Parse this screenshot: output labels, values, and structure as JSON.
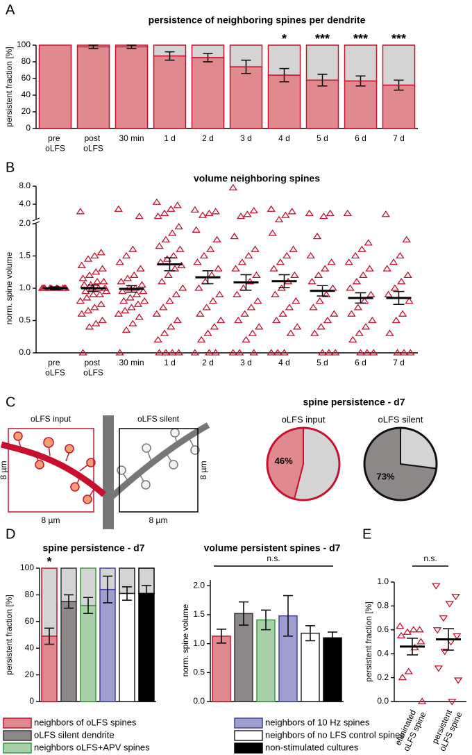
{
  "chart_data": [
    {
      "type": "stacked_bar",
      "panel": "A",
      "title": "persistence of neighboring spines per dendrite",
      "ylabel": "persistent fraction [%]",
      "categories": [
        "pre oLFS",
        "post oLFS",
        "30 min",
        "1 d",
        "2 d",
        "3 d",
        "4 d",
        "5 d",
        "6 d",
        "7 d"
      ],
      "series": [
        {
          "color": "#e08a8f",
          "edge": "#c8102e",
          "values": [
            100,
            98,
            98,
            87,
            85,
            74,
            64,
            58,
            57,
            52
          ],
          "errors": [
            0,
            2,
            2,
            5,
            5,
            8,
            8,
            7,
            6,
            6
          ]
        },
        {
          "color": "#d4d4d4",
          "values": [
            0,
            2,
            2,
            13,
            15,
            26,
            36,
            42,
            43,
            48
          ]
        }
      ],
      "significance": [
        null,
        null,
        null,
        null,
        null,
        null,
        "*",
        "***",
        "***",
        "***"
      ],
      "ylim": [
        0,
        100
      ],
      "yticks": [
        0,
        20,
        40,
        60,
        80,
        100
      ]
    },
    {
      "type": "strip",
      "panel": "B",
      "title": "volume neighboring spines",
      "ylabel": "norm. spine volume",
      "categories": [
        "pre oLFS",
        "post oLFS",
        "30 min",
        "1 d",
        "2 d",
        "3 d",
        "4 d",
        "5 d",
        "6 d",
        "7 d"
      ],
      "marker": "triangle-up",
      "color": "#c8102e",
      "points": [
        [
          1.0,
          1.0,
          1.0,
          1.0,
          1.0,
          1.0,
          1.0,
          1.0,
          1.0,
          1.0
        ],
        [
          3.0,
          1.55,
          1.5,
          1.45,
          1.35,
          1.3,
          1.25,
          1.2,
          1.15,
          1.1,
          1.1,
          1.05,
          1.05,
          1.0,
          1.0,
          1.0,
          0.95,
          0.95,
          0.9,
          0.9,
          0.85,
          0.8,
          0.75,
          0.7,
          0.65,
          0.6,
          0.5,
          0.45,
          0.4,
          0.0
        ],
        [
          3.3,
          2.5,
          1.6,
          1.5,
          1.4,
          1.3,
          1.2,
          1.15,
          1.1,
          1.05,
          1.0,
          1.0,
          0.95,
          0.95,
          0.9,
          0.85,
          0.8,
          0.8,
          0.75,
          0.7,
          0.65,
          0.6,
          0.55,
          0.45,
          0.35,
          0.0
        ],
        [
          4.3,
          3.8,
          3.3,
          2.8,
          2.5,
          1.95,
          1.85,
          1.75,
          1.65,
          1.6,
          1.5,
          1.45,
          1.4,
          1.35,
          1.3,
          1.2,
          1.1,
          1.0,
          0.9,
          0.8,
          0.7,
          0.6,
          0.5,
          0.4,
          0.3,
          0.2,
          0.0,
          0.0,
          0.0,
          0.0
        ],
        [
          3.2,
          3.0,
          2.8,
          2.6,
          1.9,
          1.75,
          1.6,
          1.5,
          1.4,
          1.3,
          1.2,
          1.1,
          1.0,
          0.9,
          0.8,
          0.7,
          0.6,
          0.5,
          0.4,
          0.3,
          0.2,
          0.0,
          0.0,
          0.0
        ],
        [
          7.5,
          3.1,
          2.7,
          2.5,
          1.8,
          1.6,
          1.5,
          1.4,
          1.3,
          1.2,
          1.1,
          1.0,
          0.9,
          0.8,
          0.7,
          0.6,
          0.5,
          0.4,
          0.3,
          0.2,
          0.0,
          0.0,
          0.0
        ],
        [
          3.3,
          3.0,
          2.6,
          2.2,
          1.85,
          1.6,
          1.5,
          1.4,
          1.3,
          1.2,
          1.1,
          1.0,
          0.9,
          0.8,
          0.7,
          0.6,
          0.5,
          0.4,
          0.3,
          0.0,
          0.0,
          0.0
        ],
        [
          2.8,
          2.8,
          2.5,
          1.8,
          1.5,
          1.4,
          1.3,
          1.2,
          1.1,
          1.0,
          0.9,
          0.8,
          0.7,
          0.6,
          0.5,
          0.4,
          0.3,
          0.0,
          0.0,
          0.0
        ],
        [
          2.8,
          1.7,
          1.6,
          1.5,
          1.4,
          1.3,
          1.2,
          1.1,
          1.0,
          0.9,
          0.8,
          0.7,
          0.6,
          0.5,
          0.4,
          0.3,
          0.2,
          0.0,
          0.0,
          0.0
        ],
        [
          2.7,
          1.75,
          1.5,
          1.4,
          1.3,
          1.2,
          1.1,
          1.0,
          0.9,
          0.8,
          0.6,
          0.5,
          0.3,
          0.0,
          0.0,
          0.0
        ]
      ],
      "means": [
        1.0,
        1.0,
        0.99,
        1.37,
        1.17,
        1.09,
        1.11,
        0.96,
        0.85,
        0.85
      ],
      "errors": [
        0.02,
        0.05,
        0.05,
        0.1,
        0.1,
        0.12,
        0.1,
        0.08,
        0.08,
        0.1
      ],
      "ylim": [
        0,
        2
      ],
      "yticks": [
        {
          "value": 0,
          "label": "0.0"
        },
        {
          "value": 0.5,
          "label": "0.5"
        },
        {
          "value": 1,
          "label": "1.0"
        },
        {
          "value": 1.5,
          "label": "1.5"
        },
        {
          "value": 2,
          "label": "2.0"
        }
      ],
      "upper_ylim": [
        2,
        8
      ],
      "upper_scale": "log",
      "upper_yticks": [
        {
          "value": 4,
          "label": "4.0"
        },
        {
          "value": 8,
          "label": "8.0"
        }
      ]
    },
    {
      "type": "pie",
      "panel": "C",
      "title": "spine persistence - d7",
      "diagram": {
        "input_label": "oLFS input",
        "silent_label": "oLFS silent",
        "scale_labels": [
          "8 µm",
          "8 µm",
          "8 µm",
          "8 µm"
        ]
      },
      "pies": [
        {
          "label": "oLFS input",
          "values": [
            46,
            54
          ],
          "value_labels": [
            "46%",
            null
          ],
          "colors": [
            "#e08a8f",
            "#d4d4d4"
          ],
          "edge": "#c8102e"
        },
        {
          "label": "oLFS silent",
          "values": [
            73,
            27
          ],
          "value_labels": [
            "73%",
            null
          ],
          "colors": [
            "#8c8888",
            "#d4d4d4"
          ],
          "edge": "#111111"
        }
      ]
    },
    {
      "type": "stacked_bar",
      "panel": "D",
      "title": "spine persistence - d7",
      "ylabel": "persistent fraction [%]",
      "categories": [
        "neighbors of oLFS spines",
        "oLFS silent dendrite",
        "neighbors oLFS+APV spines",
        "neighbors of 10 Hz spines",
        "neighbors of no LFS control spines",
        "non-stimulated cultures"
      ],
      "series": [
        {
          "color": [
            "#e08a8f",
            "#8c8888",
            "#a8d0a8",
            "#a0a0d0",
            "#ffffff",
            "#000000"
          ],
          "edge": [
            "#c8102e",
            "#333333",
            "#3a9a3a",
            "#4040a0",
            "#222222",
            "#000000"
          ],
          "values": [
            49,
            75,
            72,
            84,
            81,
            81
          ],
          "errors": [
            6,
            5,
            6,
            10,
            5,
            6
          ]
        },
        {
          "color": "#d4d4d4",
          "values": [
            51,
            25,
            28,
            16,
            19,
            19
          ]
        }
      ],
      "significance": [
        "*",
        null,
        null,
        null,
        null,
        null
      ],
      "ylim": [
        0,
        100
      ],
      "yticks": [
        0,
        20,
        40,
        60,
        80,
        100
      ]
    },
    {
      "type": "bar",
      "title": "volume persistent spines - d7",
      "ylabel": "norm. spine volume",
      "categories": [
        null,
        null,
        null,
        null,
        null,
        null
      ],
      "values": [
        1.13,
        1.52,
        1.41,
        1.48,
        1.18,
        1.1
      ],
      "errors": [
        0.12,
        0.2,
        0.17,
        0.35,
        0.13,
        0.1
      ],
      "colors": [
        "#e08a8f",
        "#8c8888",
        "#a8d0a8",
        "#a0a0d0",
        "#ffffff",
        "#000000"
      ],
      "edges": [
        "#c8102e",
        "#333333",
        "#3a9a3a",
        "#4040a0",
        "#222222",
        "#000000"
      ],
      "annotation": "n.s.",
      "ylim": [
        0,
        2.1
      ],
      "yticks": [
        {
          "value": 0,
          "label": "0.0"
        },
        {
          "value": 0.5,
          "label": "0.5"
        },
        {
          "value": 1,
          "label": "1.0"
        },
        {
          "value": 1.5,
          "label": "1.5"
        },
        {
          "value": 2,
          "label": "2.0"
        }
      ]
    },
    {
      "type": "strip",
      "panel": "E",
      "ylabel": "persistent fraction [%]",
      "categories": [
        "eliminated oLFS spine",
        "persistent oLFS spine"
      ],
      "markers": [
        "triangle-up",
        "triangle-down"
      ],
      "color": "#c8102e",
      "points": [
        [
          0.63,
          0.6,
          0.6,
          0.58,
          0.55,
          0.5,
          0.45,
          0.25,
          0.2,
          0.0
        ],
        [
          0.97,
          0.88,
          0.82,
          0.7,
          0.6,
          0.55,
          0.5,
          0.42,
          0.28,
          0.18,
          0.0
        ]
      ],
      "means": [
        0.46,
        0.52
      ],
      "errors": [
        0.07,
        0.09
      ],
      "annotation": "n.s.",
      "ylim": [
        0,
        1
      ],
      "yticks": [
        {
          "value": 0,
          "label": "0.0"
        },
        {
          "value": 0.2,
          "label": "0.2"
        },
        {
          "value": 0.4,
          "label": "0.4"
        },
        {
          "value": 0.6,
          "label": "0.6"
        },
        {
          "value": 0.8,
          "label": "0.8"
        },
        {
          "value": 1,
          "label": "1.0"
        }
      ]
    }
  ]
}
